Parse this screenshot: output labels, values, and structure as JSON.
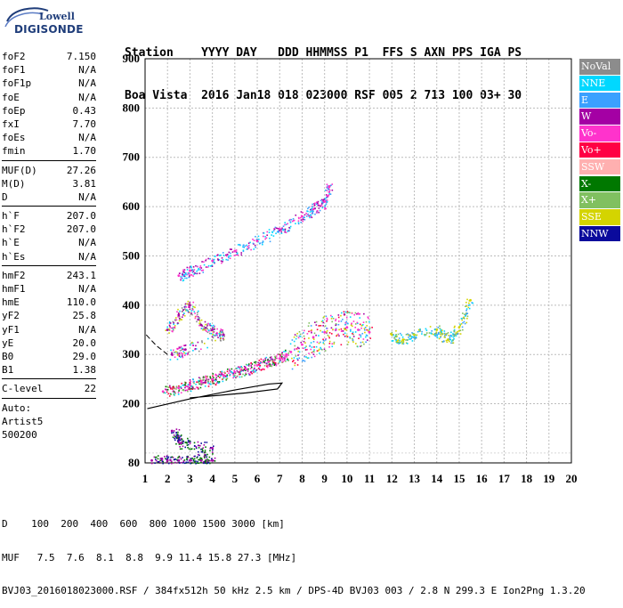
{
  "logo": {
    "line1": "Lowell",
    "line2": "DIGISONDE"
  },
  "header": {
    "row1": "Station    YYYY DAY   DDD HHMMSS P1  FFS S AXN PPS IGA PS",
    "row2": "Boa Vista  2016 Jan18 018 023000 RSF 005 2 713 100 03+ 30"
  },
  "scaled": {
    "group1": [
      {
        "name": "foF2",
        "value": "7.150"
      },
      {
        "name": "foF1",
        "value": "N/A"
      },
      {
        "name": "foF1p",
        "value": "N/A"
      },
      {
        "name": "foE",
        "value": "N/A"
      },
      {
        "name": "foEp",
        "value": "0.43"
      },
      {
        "name": "fxI",
        "value": "7.70"
      },
      {
        "name": "foEs",
        "value": "N/A"
      },
      {
        "name": "fmin",
        "value": "1.70"
      }
    ],
    "group2": [
      {
        "name": "MUF(D)",
        "value": "27.26"
      },
      {
        "name": "M(D)",
        "value": "3.81"
      },
      {
        "name": "D",
        "value": "N/A"
      }
    ],
    "group3": [
      {
        "name": "h`F",
        "value": "207.0"
      },
      {
        "name": "h`F2",
        "value": "207.0"
      },
      {
        "name": "h`E",
        "value": "N/A"
      },
      {
        "name": "h`Es",
        "value": "N/A"
      }
    ],
    "group4": [
      {
        "name": "hmF2",
        "value": "243.1"
      },
      {
        "name": "hmF1",
        "value": "N/A"
      },
      {
        "name": "hmE",
        "value": "110.0"
      },
      {
        "name": "yF2",
        "value": "25.8"
      },
      {
        "name": "yF1",
        "value": "N/A"
      },
      {
        "name": "yE",
        "value": "20.0"
      },
      {
        "name": "B0",
        "value": "29.0"
      },
      {
        "name": "B1",
        "value": "1.38"
      }
    ],
    "clevel": {
      "name": "C-level",
      "value": "22"
    },
    "auto": [
      "Auto:",
      "Artist5",
      "500200"
    ]
  },
  "legend": [
    {
      "label": "NoVal",
      "color": "#8c8c8c"
    },
    {
      "label": "NNE",
      "color": "#00d8ff"
    },
    {
      "label": "E",
      "color": "#3aa0ff"
    },
    {
      "label": "W",
      "color": "#a400a4"
    },
    {
      "label": "Vo-",
      "color": "#ff33cc"
    },
    {
      "label": "Vo+",
      "color": "#ff0044"
    },
    {
      "label": "SSW",
      "color": "#ffb0b0"
    },
    {
      "label": "X-",
      "color": "#007800"
    },
    {
      "label": "X+",
      "color": "#80c060"
    },
    {
      "label": "SSE",
      "color": "#d4d400"
    },
    {
      "label": "NNW",
      "color": "#0a0a9c"
    }
  ],
  "footer": {
    "d_line": "D    100  200  400  600  800 1000 1500 3000 [km]",
    "muf_line": "MUF   7.5  7.6  8.1  8.8  9.9 11.4 15.8 27.3 [MHz]",
    "file_line": "BVJ03_2016018023000.RSF / 384fx512h 50 kHz 2.5 km / DPS-4D BVJ03 003 / 2.8 N 299.3 E Ion2Png 1.3.20"
  },
  "chart_data": {
    "type": "scatter",
    "title": "",
    "xlabel": "",
    "ylabel": "",
    "xlim": [
      1,
      20
    ],
    "ylim": [
      80,
      900
    ],
    "xticks": [
      1,
      2,
      3,
      4,
      5,
      6,
      7,
      8,
      9,
      10,
      11,
      12,
      13,
      14,
      15,
      16,
      17,
      18,
      19,
      20
    ],
    "yticks": [
      80,
      200,
      300,
      400,
      500,
      600,
      700,
      800,
      900
    ],
    "grid": true,
    "profile_curve": [
      [
        1.05,
        340
      ],
      [
        1.5,
        318
      ],
      [
        2.0,
        300
      ]
    ],
    "trace_curve": [
      [
        1.1,
        190
      ],
      [
        3,
        210
      ],
      [
        5,
        228
      ],
      [
        6.5,
        240
      ],
      [
        7.1,
        242
      ],
      [
        6.9,
        230
      ],
      [
        5.5,
        222
      ],
      [
        4.5,
        218
      ],
      [
        3,
        212
      ]
    ],
    "clusters": [
      {
        "name": "F-trace-low",
        "colors": [
          "#ff33cc",
          "#ff0044",
          "#a400a4",
          "#00d8ff",
          "#007800",
          "#80c060"
        ],
        "points": [
          [
            1.8,
            225
          ],
          [
            2.5,
            232
          ],
          [
            3,
            238
          ],
          [
            3.5,
            245
          ],
          [
            4,
            250
          ],
          [
            4.5,
            258
          ],
          [
            5,
            264
          ],
          [
            5.5,
            270
          ],
          [
            6,
            278
          ],
          [
            6.5,
            285
          ],
          [
            7,
            292
          ],
          [
            7.3,
            300
          ]
        ]
      },
      {
        "name": "F-trace-spread",
        "colors": [
          "#ff33cc",
          "#a400a4",
          "#ff0044",
          "#00d8ff",
          "#3aa0ff",
          "#80c060",
          "#d4d400"
        ],
        "points": [
          [
            7.5,
            305
          ],
          [
            8,
            320
          ],
          [
            8.5,
            335
          ],
          [
            9,
            345
          ],
          [
            9.5,
            350
          ],
          [
            10,
            355
          ],
          [
            10.5,
            350
          ],
          [
            11,
            345
          ]
        ]
      },
      {
        "name": "oblique-high",
        "colors": [
          "#ff33cc",
          "#a400a4",
          "#3aa0ff",
          "#00d8ff"
        ],
        "points": [
          [
            2.5,
            460
          ],
          [
            3,
            470
          ],
          [
            4,
            490
          ],
          [
            5,
            510
          ],
          [
            6,
            530
          ],
          [
            7,
            555
          ],
          [
            8,
            580
          ],
          [
            8.5,
            595
          ],
          [
            9,
            610
          ],
          [
            9.2,
            640
          ]
        ]
      },
      {
        "name": "low-diffuse",
        "colors": [
          "#a400a4",
          "#ff33cc",
          "#d4d400",
          "#00d8ff",
          "#8c8c8c"
        ],
        "points": [
          [
            2,
            350
          ],
          [
            2.5,
            380
          ],
          [
            3,
            400
          ],
          [
            3.5,
            360
          ],
          [
            4,
            350
          ],
          [
            4.5,
            340
          ],
          [
            2.2,
            300
          ],
          [
            2.8,
            310
          ]
        ]
      },
      {
        "name": "outliers",
        "colors": [
          "#d4d400",
          "#3aa0ff",
          "#00d8ff",
          "#80c060"
        ],
        "points": [
          [
            12,
            340
          ],
          [
            12.5,
            330
          ],
          [
            13,
            340
          ],
          [
            14,
            350
          ],
          [
            14.5,
            330
          ],
          [
            15,
            355
          ],
          [
            15.5,
            410
          ]
        ]
      },
      {
        "name": "bottom",
        "colors": [
          "#a400a4",
          "#0a0a9c",
          "#007800"
        ],
        "points": [
          [
            1.3,
            85
          ],
          [
            2,
            85
          ],
          [
            2.5,
            85
          ],
          [
            3,
            85
          ],
          [
            3.5,
            85
          ],
          [
            4,
            85
          ],
          [
            2.2,
            145
          ],
          [
            2.6,
            120
          ],
          [
            4,
            110
          ]
        ]
      }
    ]
  }
}
